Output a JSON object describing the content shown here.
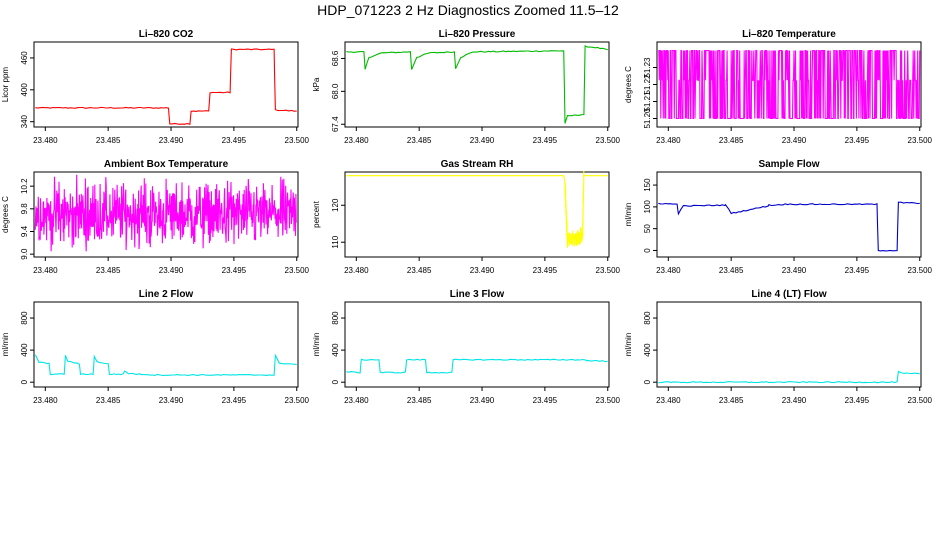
{
  "figure": {
    "title": "HDP_071223  2 Hz Diagnostics Zoomed 11.5–12"
  },
  "chart_data": [
    {
      "type": "line",
      "title": "Li–820 CO2",
      "ylabel": "Licor ppm",
      "color": "#ff0000",
      "xlim": [
        23.4791,
        23.5001
      ],
      "ylim": [
        330,
        490
      ],
      "xticks": [
        "23.480",
        "23.485",
        "23.490",
        "23.495",
        "23.500"
      ],
      "yticks": [
        "340",
        "400",
        "460"
      ],
      "ytick_values": [
        340,
        400,
        460
      ],
      "x": [
        23.4792,
        23.4898,
        23.4899,
        23.4915,
        23.4916,
        23.493,
        23.4931,
        23.4947,
        23.4948,
        23.4982,
        23.4983,
        23.5
      ],
      "y": [
        366,
        366,
        336,
        336,
        360,
        360,
        395,
        395,
        476,
        476,
        362,
        360
      ]
    },
    {
      "type": "line",
      "title": "Li–820 Pressure",
      "ylabel": "kPa",
      "color": "#00bb00",
      "xlim": [
        23.4791,
        23.5001
      ],
      "ylim": [
        67.35,
        68.9
      ],
      "xticks": [
        "23.480",
        "23.485",
        "23.490",
        "23.495",
        "23.500"
      ],
      "yticks": [
        "67.4",
        "68.0",
        "68.6"
      ],
      "ytick_values": [
        67.4,
        68.0,
        68.6
      ],
      "x": [
        23.4792,
        23.4806,
        23.4807,
        23.481,
        23.482,
        23.4843,
        23.4844,
        23.4848,
        23.4858,
        23.4878,
        23.4879,
        23.4883,
        23.4893,
        23.4965,
        23.4966,
        23.4968,
        23.4981,
        23.4982,
        23.499,
        23.5
      ],
      "y": [
        68.72,
        68.72,
        68.4,
        68.62,
        68.7,
        68.72,
        68.4,
        68.62,
        68.7,
        68.72,
        68.42,
        68.62,
        68.72,
        68.74,
        67.42,
        67.55,
        67.58,
        68.82,
        68.8,
        68.76
      ]
    },
    {
      "type": "line",
      "title": "Li–820 Temperature",
      "ylabel": "degrees C",
      "color": "#ff00ff",
      "xlim": [
        23.4791,
        23.5001
      ],
      "ylim": [
        51.195,
        51.245
      ],
      "xticks": [
        "23.480",
        "23.485",
        "23.490",
        "23.495",
        "23.500"
      ],
      "yticks": [
        "51.20",
        "51.21",
        "51.22",
        "51.23"
      ],
      "ytick_values": [
        51.2,
        51.21,
        51.22,
        51.23
      ],
      "x": [
        23.4792,
        23.5
      ],
      "y": [
        51.2,
        51.24
      ],
      "levels": [
        51.2,
        51.2225,
        51.24
      ]
    },
    {
      "type": "line",
      "title": "Ambient Box Temperature",
      "ylabel": "degrees C",
      "color": "#ff00ff",
      "xlim": [
        23.4791,
        23.5001
      ],
      "ylim": [
        8.95,
        10.45
      ],
      "xticks": [
        "23.480",
        "23.485",
        "23.490",
        "23.495",
        "23.500"
      ],
      "yticks": [
        "9.0",
        "9.4",
        "9.8",
        "10.2"
      ],
      "ytick_values": [
        9.0,
        9.4,
        9.8,
        10.2
      ],
      "x": [
        23.4792,
        23.5
      ],
      "y": [
        9.05,
        10.4
      ],
      "center": 9.7
    },
    {
      "type": "line",
      "title": "Gas Stream RH",
      "ylabel": "percent",
      "color": "#ffff00",
      "xlim": [
        23.4791,
        23.5001
      ],
      "ylim": [
        106,
        129
      ],
      "xticks": [
        "23.480",
        "23.485",
        "23.490",
        "23.495",
        "23.500"
      ],
      "yticks": [
        "110",
        "120"
      ],
      "ytick_values": [
        110,
        120
      ],
      "x": [
        23.4792,
        23.4965,
        23.4966,
        23.4968,
        23.498,
        23.4981,
        23.4983,
        23.5
      ],
      "y": [
        128,
        128,
        126,
        110,
        112,
        128,
        128,
        128
      ]
    },
    {
      "type": "line",
      "title": "Sample Flow",
      "ylabel": "ml/min",
      "color": "#0000cc",
      "xlim": [
        23.4791,
        23.5001
      ],
      "ylim": [
        -15,
        180
      ],
      "xticks": [
        "23.480",
        "23.485",
        "23.490",
        "23.495",
        "23.500"
      ],
      "yticks": [
        "0",
        "50",
        "100",
        "150"
      ],
      "ytick_values": [
        0,
        50,
        100,
        150
      ],
      "x": [
        23.4792,
        23.4807,
        23.4808,
        23.4812,
        23.4845,
        23.4846,
        23.485,
        23.4879,
        23.488,
        23.4884,
        23.4893,
        23.4966,
        23.4967,
        23.4982,
        23.4983,
        23.5
      ],
      "y": [
        108,
        106,
        85,
        102,
        104,
        104,
        85,
        102,
        104,
        104,
        106,
        106,
        0,
        0,
        110,
        108
      ]
    },
    {
      "type": "line",
      "title": "Line 2 Flow",
      "ylabel": "ml/min",
      "color": "#00e5e5",
      "xlim": [
        23.4791,
        23.5001
      ],
      "ylim": [
        -60,
        1000
      ],
      "xticks": [
        "23.480",
        "23.485",
        "23.490",
        "23.495",
        "23.500"
      ],
      "yticks": [
        "0",
        "400",
        "800"
      ],
      "ytick_values": [
        0,
        400,
        800
      ],
      "x": [
        23.4792,
        23.4795,
        23.4803,
        23.4804,
        23.4815,
        23.4816,
        23.4818,
        23.4827,
        23.4828,
        23.4838,
        23.4839,
        23.4841,
        23.485,
        23.4851,
        23.4862,
        23.4863,
        23.4866,
        23.4875,
        23.4876,
        23.4887,
        23.4982,
        23.4983,
        23.4986,
        23.5
      ],
      "y": [
        340,
        250,
        230,
        100,
        100,
        330,
        260,
        230,
        100,
        100,
        320,
        255,
        230,
        100,
        100,
        140,
        110,
        100,
        100,
        90,
        90,
        330,
        240,
        220
      ]
    },
    {
      "type": "line",
      "title": "Line 3 Flow",
      "ylabel": "ml/min",
      "color": "#00e5e5",
      "xlim": [
        23.4791,
        23.5001
      ],
      "ylim": [
        -60,
        1000
      ],
      "xticks": [
        "23.480",
        "23.485",
        "23.490",
        "23.495",
        "23.500"
      ],
      "yticks": [
        "0",
        "400",
        "800"
      ],
      "ytick_values": [
        0,
        400,
        800
      ],
      "x": [
        23.4792,
        23.4803,
        23.4804,
        23.4818,
        23.4819,
        23.4839,
        23.484,
        23.4855,
        23.4856,
        23.4876,
        23.4877,
        23.4982,
        23.4983,
        23.5
      ],
      "y": [
        130,
        120,
        280,
        280,
        120,
        120,
        280,
        280,
        120,
        120,
        280,
        280,
        270,
        260
      ]
    },
    {
      "type": "line",
      "title": "Line 4 (LT) Flow",
      "ylabel": "ml/min",
      "color": "#00e5e5",
      "xlim": [
        23.4791,
        23.5001
      ],
      "ylim": [
        -60,
        1000
      ],
      "xticks": [
        "23.480",
        "23.485",
        "23.490",
        "23.495",
        "23.500"
      ],
      "yticks": [
        "0",
        "400",
        "800"
      ],
      "ytick_values": [
        0,
        400,
        800
      ],
      "x": [
        23.4792,
        23.4982,
        23.4983,
        23.4986,
        23.5
      ],
      "y": [
        0,
        0,
        130,
        110,
        105
      ]
    }
  ]
}
